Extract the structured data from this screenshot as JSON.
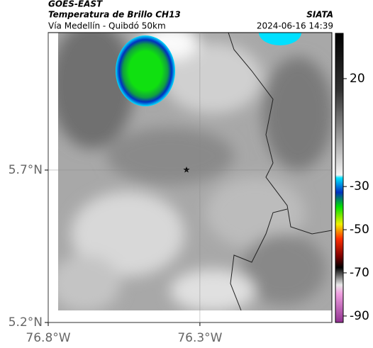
{
  "header": {
    "title": "GOES-EAST",
    "subtitle": "Temperatura de Brillo CH13",
    "route": "Vía Medellín - Quibdó 50km",
    "source": "SIATA",
    "timestamp": "2024-06-16 14:39"
  },
  "map": {
    "xlim": [
      -76.8,
      -75.865
    ],
    "ylim": [
      5.2,
      6.151
    ],
    "xticks": [
      {
        "value": -76.8,
        "label": "76.8°W"
      },
      {
        "value": -76.3,
        "label": "76.3°W"
      }
    ],
    "yticks": [
      {
        "value": 5.7,
        "label": "5.7°N"
      },
      {
        "value": 5.2,
        "label": "5.2°N"
      }
    ],
    "colorbar": {
      "lim": [
        -93,
        41
      ],
      "ticks": [
        20,
        -30,
        -50,
        -70,
        -90
      ]
    }
  }
}
